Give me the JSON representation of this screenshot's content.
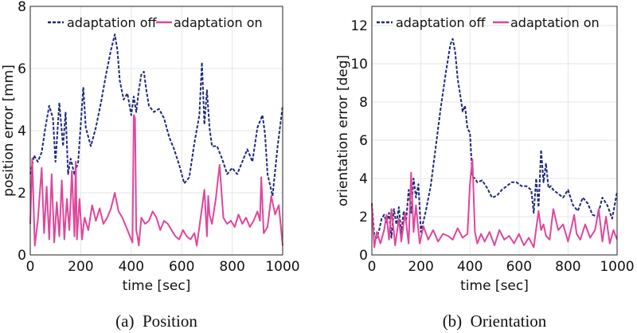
{
  "colors": {
    "off": "#1f2a7a",
    "on": "#e0469b"
  },
  "chart_data": [
    {
      "type": "line",
      "caption": "(a)  Position",
      "xlabel": "time [sec]",
      "ylabel": "position error [mm]",
      "xlim": [
        0,
        1000
      ],
      "ylim": [
        0,
        8
      ],
      "xticks": [
        0,
        200,
        400,
        600,
        800,
        1000
      ],
      "yticks": [
        0,
        2,
        4,
        6,
        8
      ],
      "grid": true,
      "legend": "top",
      "series": [
        {
          "name": "adaptation off",
          "style": "dashed",
          "x": [
            0,
            15,
            30,
            45,
            60,
            75,
            90,
            100,
            115,
            130,
            140,
            150,
            160,
            175,
            190,
            200,
            210,
            220,
            240,
            260,
            280,
            300,
            320,
            335,
            345,
            355,
            370,
            385,
            400,
            410,
            420,
            430,
            440,
            450,
            460,
            470,
            490,
            510,
            530,
            550,
            570,
            590,
            610,
            630,
            650,
            670,
            680,
            690,
            700,
            710,
            720,
            740,
            760,
            780,
            800,
            820,
            840,
            860,
            880,
            900,
            920,
            930,
            940,
            960,
            980,
            1000
          ],
          "values": [
            2.6,
            3.2,
            3.0,
            3.3,
            4.1,
            4.8,
            4.4,
            3.0,
            4.9,
            3.5,
            4.6,
            2.6,
            3.1,
            2.6,
            3.0,
            4.2,
            5.4,
            4.1,
            3.5,
            4.1,
            4.9,
            5.8,
            6.6,
            7.1,
            6.6,
            5.6,
            5.0,
            5.2,
            4.5,
            5.1,
            4.6,
            5.3,
            5.8,
            5.9,
            5.3,
            4.8,
            4.6,
            4.7,
            4.4,
            3.8,
            3.4,
            2.9,
            2.3,
            2.5,
            3.6,
            4.5,
            6.2,
            4.2,
            5.3,
            4.1,
            3.5,
            3.5,
            3.1,
            2.6,
            2.8,
            2.6,
            3.0,
            3.4,
            3.0,
            4.1,
            4.5,
            3.9,
            2.6,
            1.9,
            3.5,
            4.8
          ]
        },
        {
          "name": "adaptation on",
          "style": "solid",
          "x": [
            0,
            8,
            18,
            30,
            45,
            55,
            65,
            75,
            85,
            95,
            105,
            115,
            125,
            135,
            145,
            155,
            165,
            175,
            180,
            185,
            195,
            205,
            215,
            230,
            245,
            260,
            275,
            290,
            305,
            320,
            335,
            350,
            365,
            380,
            395,
            405,
            410,
            415,
            420,
            425,
            430,
            440,
            455,
            470,
            485,
            500,
            515,
            530,
            545,
            560,
            575,
            590,
            605,
            620,
            635,
            650,
            660,
            670,
            680,
            690,
            700,
            705,
            710,
            720,
            735,
            750,
            765,
            780,
            795,
            810,
            825,
            840,
            855,
            870,
            885,
            900,
            910,
            915,
            925,
            940,
            955,
            970,
            985,
            1000
          ],
          "values": [
            1.0,
            3.1,
            0.3,
            1.1,
            2.8,
            0.7,
            2.2,
            0.5,
            2.6,
            0.4,
            1.7,
            0.6,
            2.4,
            0.5,
            1.8,
            0.8,
            2.7,
            0.6,
            3.0,
            0.5,
            1.8,
            0.5,
            1.2,
            0.8,
            1.6,
            1.1,
            1.5,
            1.0,
            1.2,
            1.5,
            2.0,
            1.4,
            1.2,
            0.9,
            0.6,
            0.4,
            4.5,
            4.4,
            0.8,
            0.6,
            0.3,
            1.2,
            1.0,
            1.1,
            1.4,
            1.2,
            0.8,
            1.1,
            1.0,
            0.8,
            0.6,
            0.5,
            0.8,
            0.6,
            0.5,
            0.7,
            0.3,
            0.9,
            1.5,
            2.1,
            0.6,
            1.9,
            1.3,
            1.0,
            1.8,
            2.9,
            1.2,
            1.0,
            1.1,
            0.9,
            1.3,
            1.0,
            1.2,
            0.9,
            1.1,
            1.4,
            1.1,
            2.5,
            0.7,
            0.9,
            1.9,
            1.3,
            1.6,
            0.3
          ]
        }
      ]
    },
    {
      "type": "line",
      "caption": "(b)  Orientation",
      "xlabel": "time [sec]",
      "ylabel": "orientation error [deg]",
      "xlim": [
        0,
        1000
      ],
      "ylim": [
        0,
        13
      ],
      "xticks": [
        0,
        200,
        400,
        600,
        800,
        1000
      ],
      "yticks": [
        0,
        2,
        4,
        6,
        8,
        10,
        12
      ],
      "grid": true,
      "legend": "top",
      "series": [
        {
          "name": "adaptation off",
          "style": "dashed",
          "x": [
            0,
            10,
            20,
            30,
            40,
            50,
            60,
            70,
            80,
            90,
            100,
            110,
            120,
            130,
            140,
            150,
            160,
            170,
            180,
            190,
            200,
            220,
            240,
            260,
            280,
            300,
            320,
            330,
            340,
            350,
            360,
            370,
            380,
            390,
            400,
            410,
            420,
            430,
            450,
            470,
            490,
            510,
            530,
            550,
            570,
            590,
            610,
            630,
            650,
            660,
            670,
            680,
            690,
            700,
            710,
            720,
            730,
            740,
            760,
            780,
            800,
            820,
            840,
            860,
            880,
            900,
            920,
            940,
            960,
            980,
            1000
          ],
          "values": [
            2.7,
            1.0,
            0.9,
            1.3,
            1.9,
            2.1,
            1.7,
            2.2,
            0.9,
            2.4,
            1.6,
            2.5,
            1.1,
            2.3,
            1.8,
            3.4,
            2.2,
            4.0,
            3.0,
            3.7,
            1.2,
            2.3,
            3.6,
            5.6,
            7.6,
            9.4,
            11.0,
            11.3,
            10.6,
            9.2,
            8.4,
            7.5,
            7.8,
            6.6,
            6.4,
            4.1,
            4.0,
            3.8,
            3.9,
            3.5,
            3.0,
            3.1,
            3.4,
            3.6,
            3.8,
            3.8,
            3.6,
            3.6,
            3.4,
            2.2,
            4.0,
            2.5,
            5.5,
            3.8,
            4.8,
            3.5,
            3.6,
            3.4,
            3.2,
            3.0,
            3.4,
            2.6,
            2.3,
            3.0,
            2.7,
            2.1,
            2.0,
            3.0,
            2.6,
            1.9,
            3.3
          ]
        },
        {
          "name": "adaptation on",
          "style": "solid",
          "x": [
            0,
            10,
            20,
            35,
            50,
            60,
            70,
            80,
            95,
            110,
            120,
            135,
            150,
            160,
            170,
            180,
            195,
            210,
            230,
            250,
            270,
            290,
            310,
            330,
            350,
            370,
            390,
            400,
            410,
            420,
            430,
            445,
            460,
            480,
            500,
            520,
            540,
            560,
            580,
            600,
            620,
            640,
            660,
            680,
            690,
            700,
            710,
            725,
            740,
            760,
            780,
            800,
            815,
            825,
            835,
            850,
            870,
            890,
            910,
            925,
            940,
            955,
            970,
            985,
            1000
          ],
          "values": [
            2.6,
            0.4,
            1.2,
            0.6,
            1.3,
            2.1,
            0.8,
            2.4,
            0.5,
            1.9,
            0.7,
            2.2,
            0.6,
            4.3,
            1.2,
            2.6,
            0.6,
            1.5,
            0.8,
            1.3,
            0.7,
            1.1,
            1.0,
            0.8,
            1.4,
            0.9,
            1.1,
            3.7,
            5.0,
            1.2,
            0.6,
            1.1,
            0.7,
            1.2,
            0.5,
            1.3,
            0.8,
            1.0,
            0.6,
            1.1,
            0.5,
            0.9,
            0.4,
            2.3,
            1.3,
            1.6,
            1.0,
            0.8,
            2.4,
            1.3,
            1.6,
            0.7,
            1.5,
            2.1,
            1.1,
            0.8,
            1.6,
            0.9,
            1.3,
            2.4,
            0.7,
            2.0,
            0.6,
            1.3,
            0.8
          ]
        }
      ]
    }
  ]
}
